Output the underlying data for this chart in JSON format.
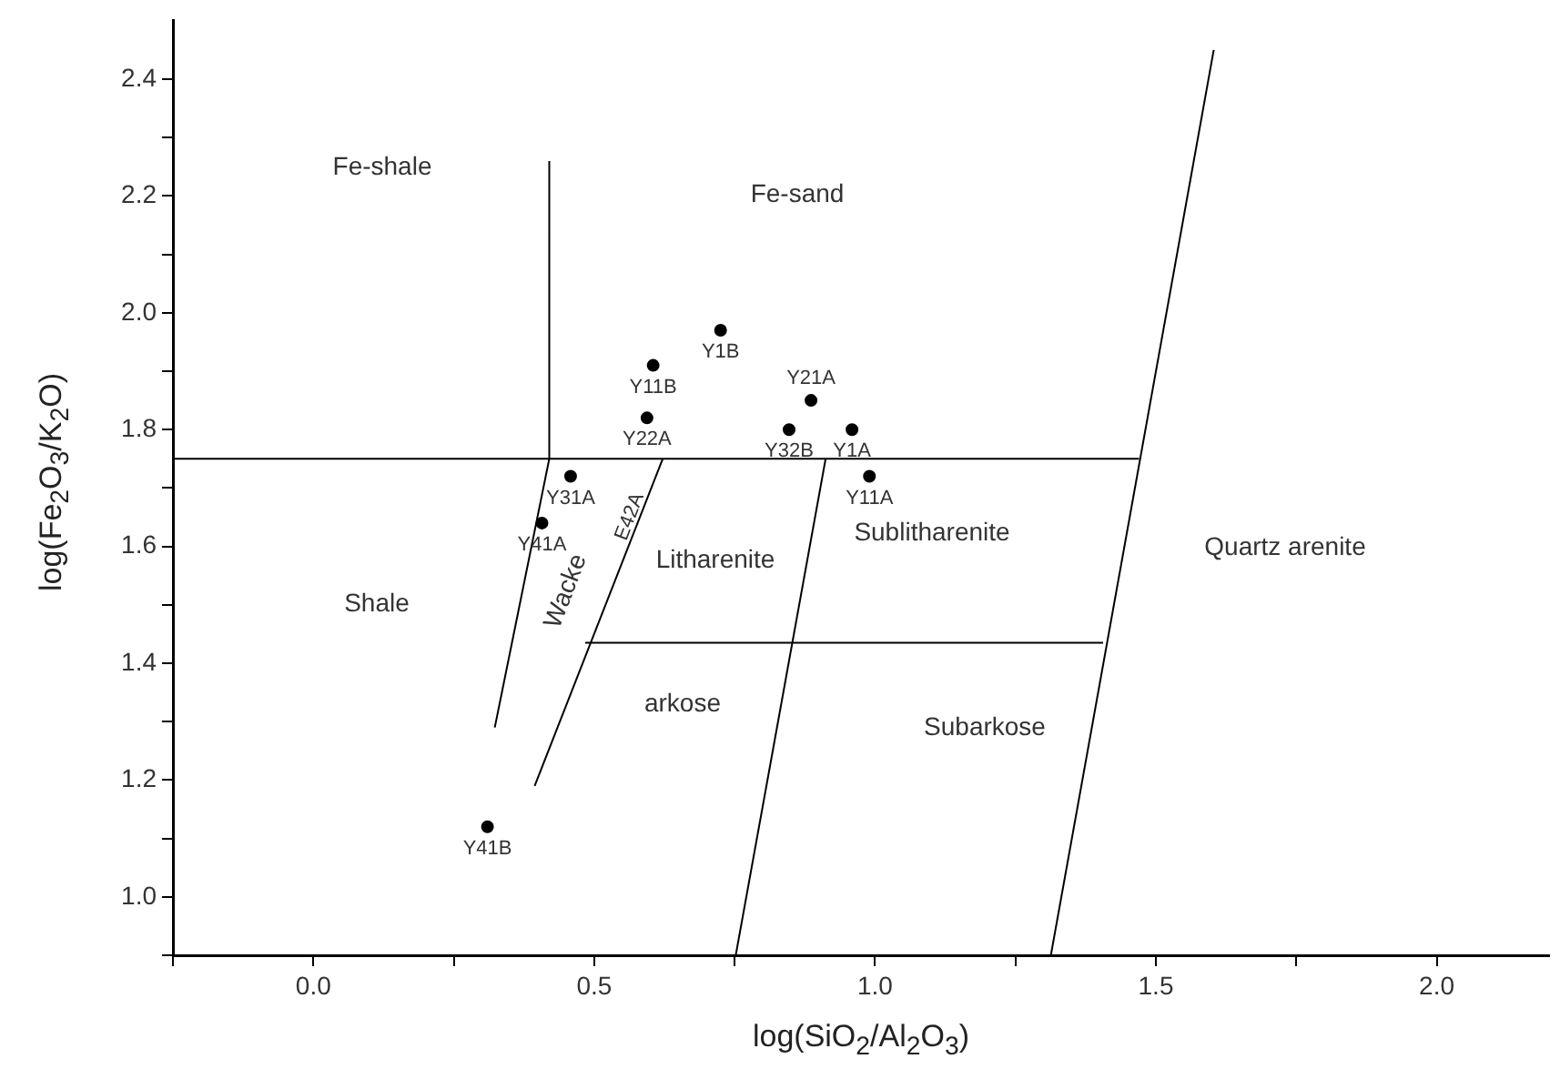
{
  "chart_data": {
    "type": "scatter",
    "xlabel": "log(SiO$_{2}$/Al$_{2}$O$_{3}$)",
    "ylabel": "log(Fe$_{2}$O$_{3}$/K$_{2}$O)",
    "xlim": [
      -0.25,
      2.2
    ],
    "ylim": [
      0.9,
      2.5
    ],
    "xticks": [
      {
        "value": -0.25,
        "label": null
      },
      {
        "value": 0,
        "label": "0.0"
      },
      {
        "value": 0.25,
        "label": null
      },
      0.5,
      {
        "value": 0.75,
        "label": null
      },
      {
        "value": 1,
        "label": "1.0"
      },
      {
        "value": 1.25,
        "label": null
      },
      1.5,
      {
        "value": 1.75,
        "label": null
      },
      {
        "value": 2,
        "label": "2.0"
      }
    ],
    "yticks": [
      {
        "value": 0.9,
        "label": null
      },
      {
        "value": 1,
        "label": "1.0"
      },
      {
        "value": 1.1,
        "label": null
      },
      1.2,
      {
        "value": 1.3,
        "label": null
      },
      1.4,
      {
        "value": 1.5,
        "label": null
      },
      1.6,
      {
        "value": 1.7,
        "label": null
      },
      1.8,
      {
        "value": 1.9,
        "label": null
      },
      {
        "value": 2,
        "label": "2.0"
      },
      {
        "value": 2.1,
        "label": null
      },
      2.2,
      {
        "value": 2.3,
        "label": null
      },
      2.4
    ],
    "series": [
      {
        "color": "#000000",
        "marker": "circle",
        "x": [
          0.725,
          0.605,
          0.886,
          0.594,
          0.847,
          0.959,
          0.99,
          0.458,
          0.407,
          0.31
        ],
        "values": [
          1.97,
          1.91,
          1.85,
          1.82,
          1.8,
          1.8,
          1.72,
          1.72,
          1.64,
          1.12
        ],
        "value_labels": [
          "Y1B",
          "Y11B",
          "Y21A",
          "Y22A",
          "Y32B",
          "Y1A",
          "Y11A",
          "Y31A",
          "Y41A",
          "Y41B"
        ]
      },
      {
        "type": "line",
        "color": "#000000",
        "marker": "none",
        "x": [
          -0.25,
          1.47
        ],
        "values": [
          1.75,
          1.75
        ]
      },
      {
        "type": "line",
        "color": "#000000",
        "marker": "none",
        "x": [
          0.323,
          0.42,
          0.42
        ],
        "values": [
          1.29,
          1.75,
          2.26
        ]
      },
      {
        "type": "line",
        "color": "#000000",
        "marker": "none",
        "x": [
          0.394,
          0.622
        ],
        "values": [
          1.19,
          1.75
        ]
      },
      {
        "type": "line",
        "color": "#000000",
        "marker": "none",
        "x": [
          0.752,
          0.912
        ],
        "values": [
          0.9,
          1.75
        ]
      },
      {
        "type": "line",
        "color": "#000000",
        "marker": "none",
        "x": [
          0.484,
          1.406
        ],
        "values": [
          1.435,
          1.435
        ]
      },
      {
        "type": "line",
        "color": "#000000",
        "marker": "none",
        "x": [
          1.313,
          1.603
        ],
        "values": [
          0.9,
          2.45
        ]
      }
    ],
    "annotations": [
      "Fe-shale",
      "Fe-sand",
      "Shale",
      "Wacke",
      "E42A",
      "Litharenite",
      "Sublitharenite",
      "Quartz arenite",
      "arkose",
      "Subarkose"
    ]
  }
}
